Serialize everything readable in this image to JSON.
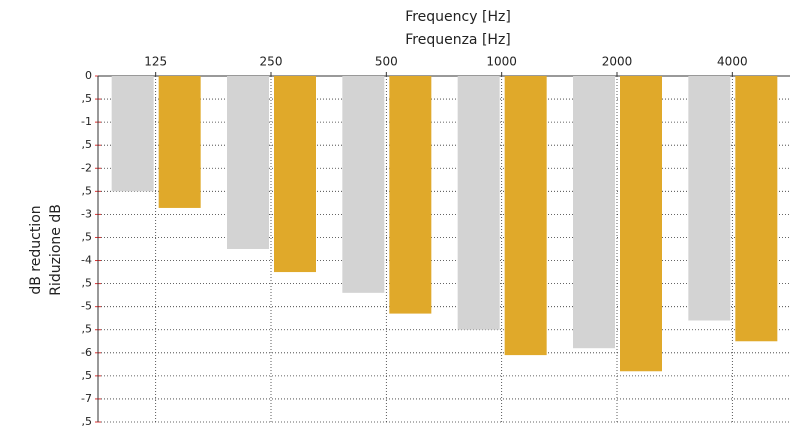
{
  "chart_data": {
    "type": "bar",
    "xlabel": [
      "Frequency [Hz]",
      "Frequenza [Hz]"
    ],
    "ylabel": [
      "dB reduction",
      "Riduzione dB"
    ],
    "categories": [
      "125",
      "250",
      "500",
      "1000",
      "2000",
      "4000"
    ],
    "series": [
      {
        "color": "#d3d3d3",
        "values": [
          -2.5,
          -3.75,
          -4.7,
          -5.5,
          -5.9,
          -5.3
        ]
      },
      {
        "color": "#e0a92a",
        "values": [
          -2.86,
          -4.25,
          -5.15,
          -6.05,
          -6.4,
          -5.75
        ]
      }
    ],
    "ylim": [
      -7.5,
      0
    ],
    "yticks": [
      0,
      {
        "value": -0.5,
        "label": ",5"
      },
      -1,
      {
        "value": -1.5,
        "label": ",5"
      },
      -2,
      {
        "value": -2.5,
        "label": ",5"
      },
      -3,
      {
        "value": -3.5,
        "label": ",5"
      },
      -4,
      {
        "value": -4.5,
        "label": ",5"
      },
      -5,
      {
        "value": -5.5,
        "label": ",5"
      },
      -6,
      {
        "value": -6.5,
        "label": ",5"
      },
      -7,
      {
        "value": -7.5,
        "label": ",5"
      }
    ],
    "grid": true
  }
}
